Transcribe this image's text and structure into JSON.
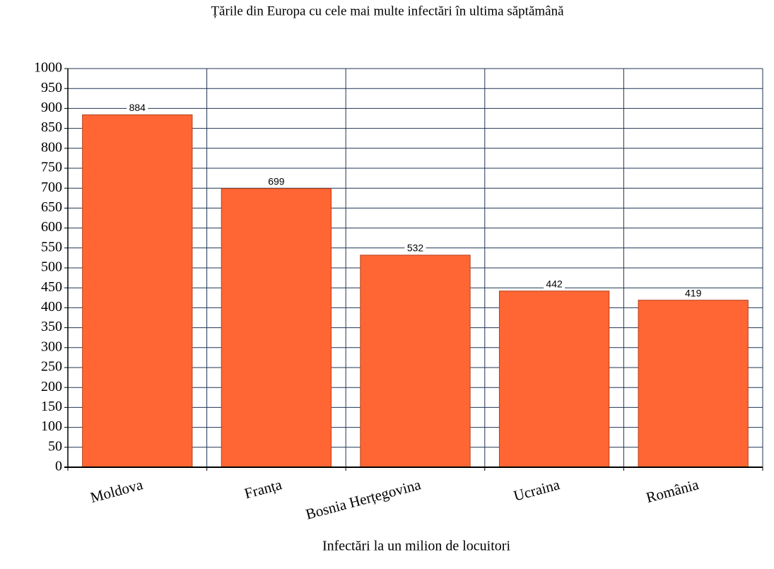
{
  "chart_data": {
    "type": "bar",
    "title": "Țările din Europa cu cele mai multe infectări în ultima săptămână",
    "x_label": "Infectări la un milion de locuitori",
    "categories": [
      "Moldova",
      "Franța",
      "Bosnia Herțegovina",
      "Ucraina",
      "România"
    ],
    "values": [
      884,
      699,
      532,
      442,
      419
    ],
    "color": "#ff6633",
    "ylim": [
      0,
      1000
    ],
    "yticks": [
      0,
      50,
      100,
      150,
      200,
      250,
      300,
      350,
      400,
      450,
      500,
      550,
      600,
      650,
      700,
      750,
      800,
      850,
      900,
      950,
      1000
    ],
    "grid": true
  }
}
